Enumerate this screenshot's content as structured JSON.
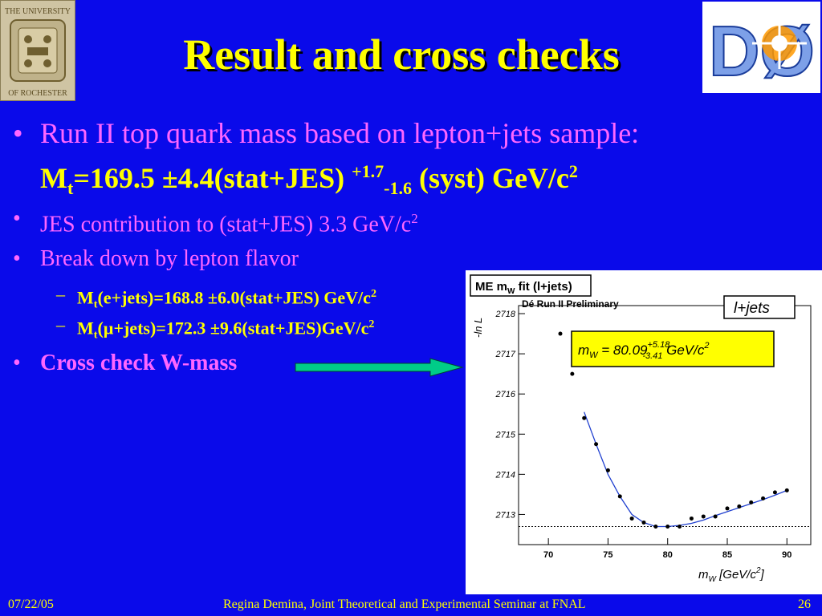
{
  "slide": {
    "title": "Result and cross checks",
    "bullets": {
      "b1_text": "Run II top quark mass based on lepton+jets sample:",
      "b1_mt": "M",
      "b1_t_sub": "t",
      "b1_value": "=169.5 ±4.4(stat+JES) ",
      "b1_sup": "+1.7",
      "b1_sub": "-1.6",
      "b1_tail": " (syst) GeV/c",
      "b1_pow": "2",
      "b2_text": "JES contribution to (stat+JES) 3.3 GeV/c",
      "b2_pow": "2",
      "b3_text": "Break down by lepton flavor",
      "s1_m": "M",
      "s1_t": "t",
      "s1_text": "(e+jets)=168.8 ±6.0(stat+JES) GeV/c",
      "s1_pow": "2",
      "s2_m": "M",
      "s2_t": "t",
      "s2_text": "(µ+jets)=172.3 ±9.6(stat+JES)GeV/c",
      "s2_pow": "2",
      "b4_text": "Cross check W-mass",
      "bullet_glyph": "•",
      "dash_glyph": "–"
    },
    "logo_left": {
      "line1": "THE UNIVERSITY",
      "line2": "OF ROCHESTER",
      "icon": "university-seal-icon"
    },
    "logo_right": {
      "text": "DØ",
      "icon": "dzero-experiment-logo-icon"
    },
    "footer": {
      "date": "07/22/05",
      "center": "Regina Demina, Joint Theoretical and Experimental Seminar at FNAL",
      "page": "26"
    },
    "colors": {
      "background": "#0a0aea",
      "title": "#ffff00",
      "bullet": "#ff66ff",
      "arrow": "#00cc88"
    }
  },
  "chart_data": {
    "type": "scatter",
    "title": "ME m",
    "title_sub": "W",
    "title_tail": " fit (l+jets)",
    "subtitle": "Dé Run II Preliminary",
    "legend": "l+jets",
    "fit_label_main": "m",
    "fit_label_sub": "W",
    "fit_label_value": " = 80.09",
    "fit_label_sup": "+5.18",
    "fit_label_subscript": "-3.41",
    "fit_label_unit": " GeV/c",
    "fit_label_pow": "2",
    "ylabel": "-ln L",
    "xlabel_m": "m",
    "xlabel_sub": "W",
    "xlabel_tail": " [GeV/c",
    "xlabel_pow": "2",
    "xlabel_close": "]",
    "xlim": [
      67.5,
      92
    ],
    "ylim": [
      2712.25,
      2718.2
    ],
    "xticks": [
      70,
      75,
      80,
      85,
      90
    ],
    "yticks": [
      2713,
      2714,
      2715,
      2716,
      2717,
      2718
    ],
    "x": [
      71,
      72,
      73,
      74,
      75,
      76,
      77,
      78,
      79,
      80,
      81,
      82,
      83,
      84,
      85,
      86,
      87,
      88,
      89,
      90
    ],
    "y": [
      2717.5,
      2716.5,
      2715.4,
      2714.75,
      2714.1,
      2713.45,
      2712.9,
      2712.8,
      2712.7,
      2712.7,
      2712.7,
      2712.9,
      2712.95,
      2712.95,
      2713.15,
      2713.2,
      2713.3,
      2713.4,
      2713.55,
      2713.6
    ],
    "fit_x": [
      73,
      74,
      75,
      76,
      77,
      78,
      79,
      80,
      81,
      82,
      83,
      84,
      85,
      86,
      87,
      88,
      89,
      90
    ],
    "fit_y": [
      2715.55,
      2714.75,
      2714.0,
      2713.45,
      2713.0,
      2712.8,
      2712.7,
      2712.7,
      2712.73,
      2712.78,
      2712.86,
      2712.97,
      2713.07,
      2713.17,
      2713.27,
      2713.37,
      2713.48,
      2713.6
    ],
    "min_line": 2712.7,
    "colors": {
      "points": "#000000",
      "fit": "#1f3fcf",
      "label_box": "#ffff00"
    }
  }
}
